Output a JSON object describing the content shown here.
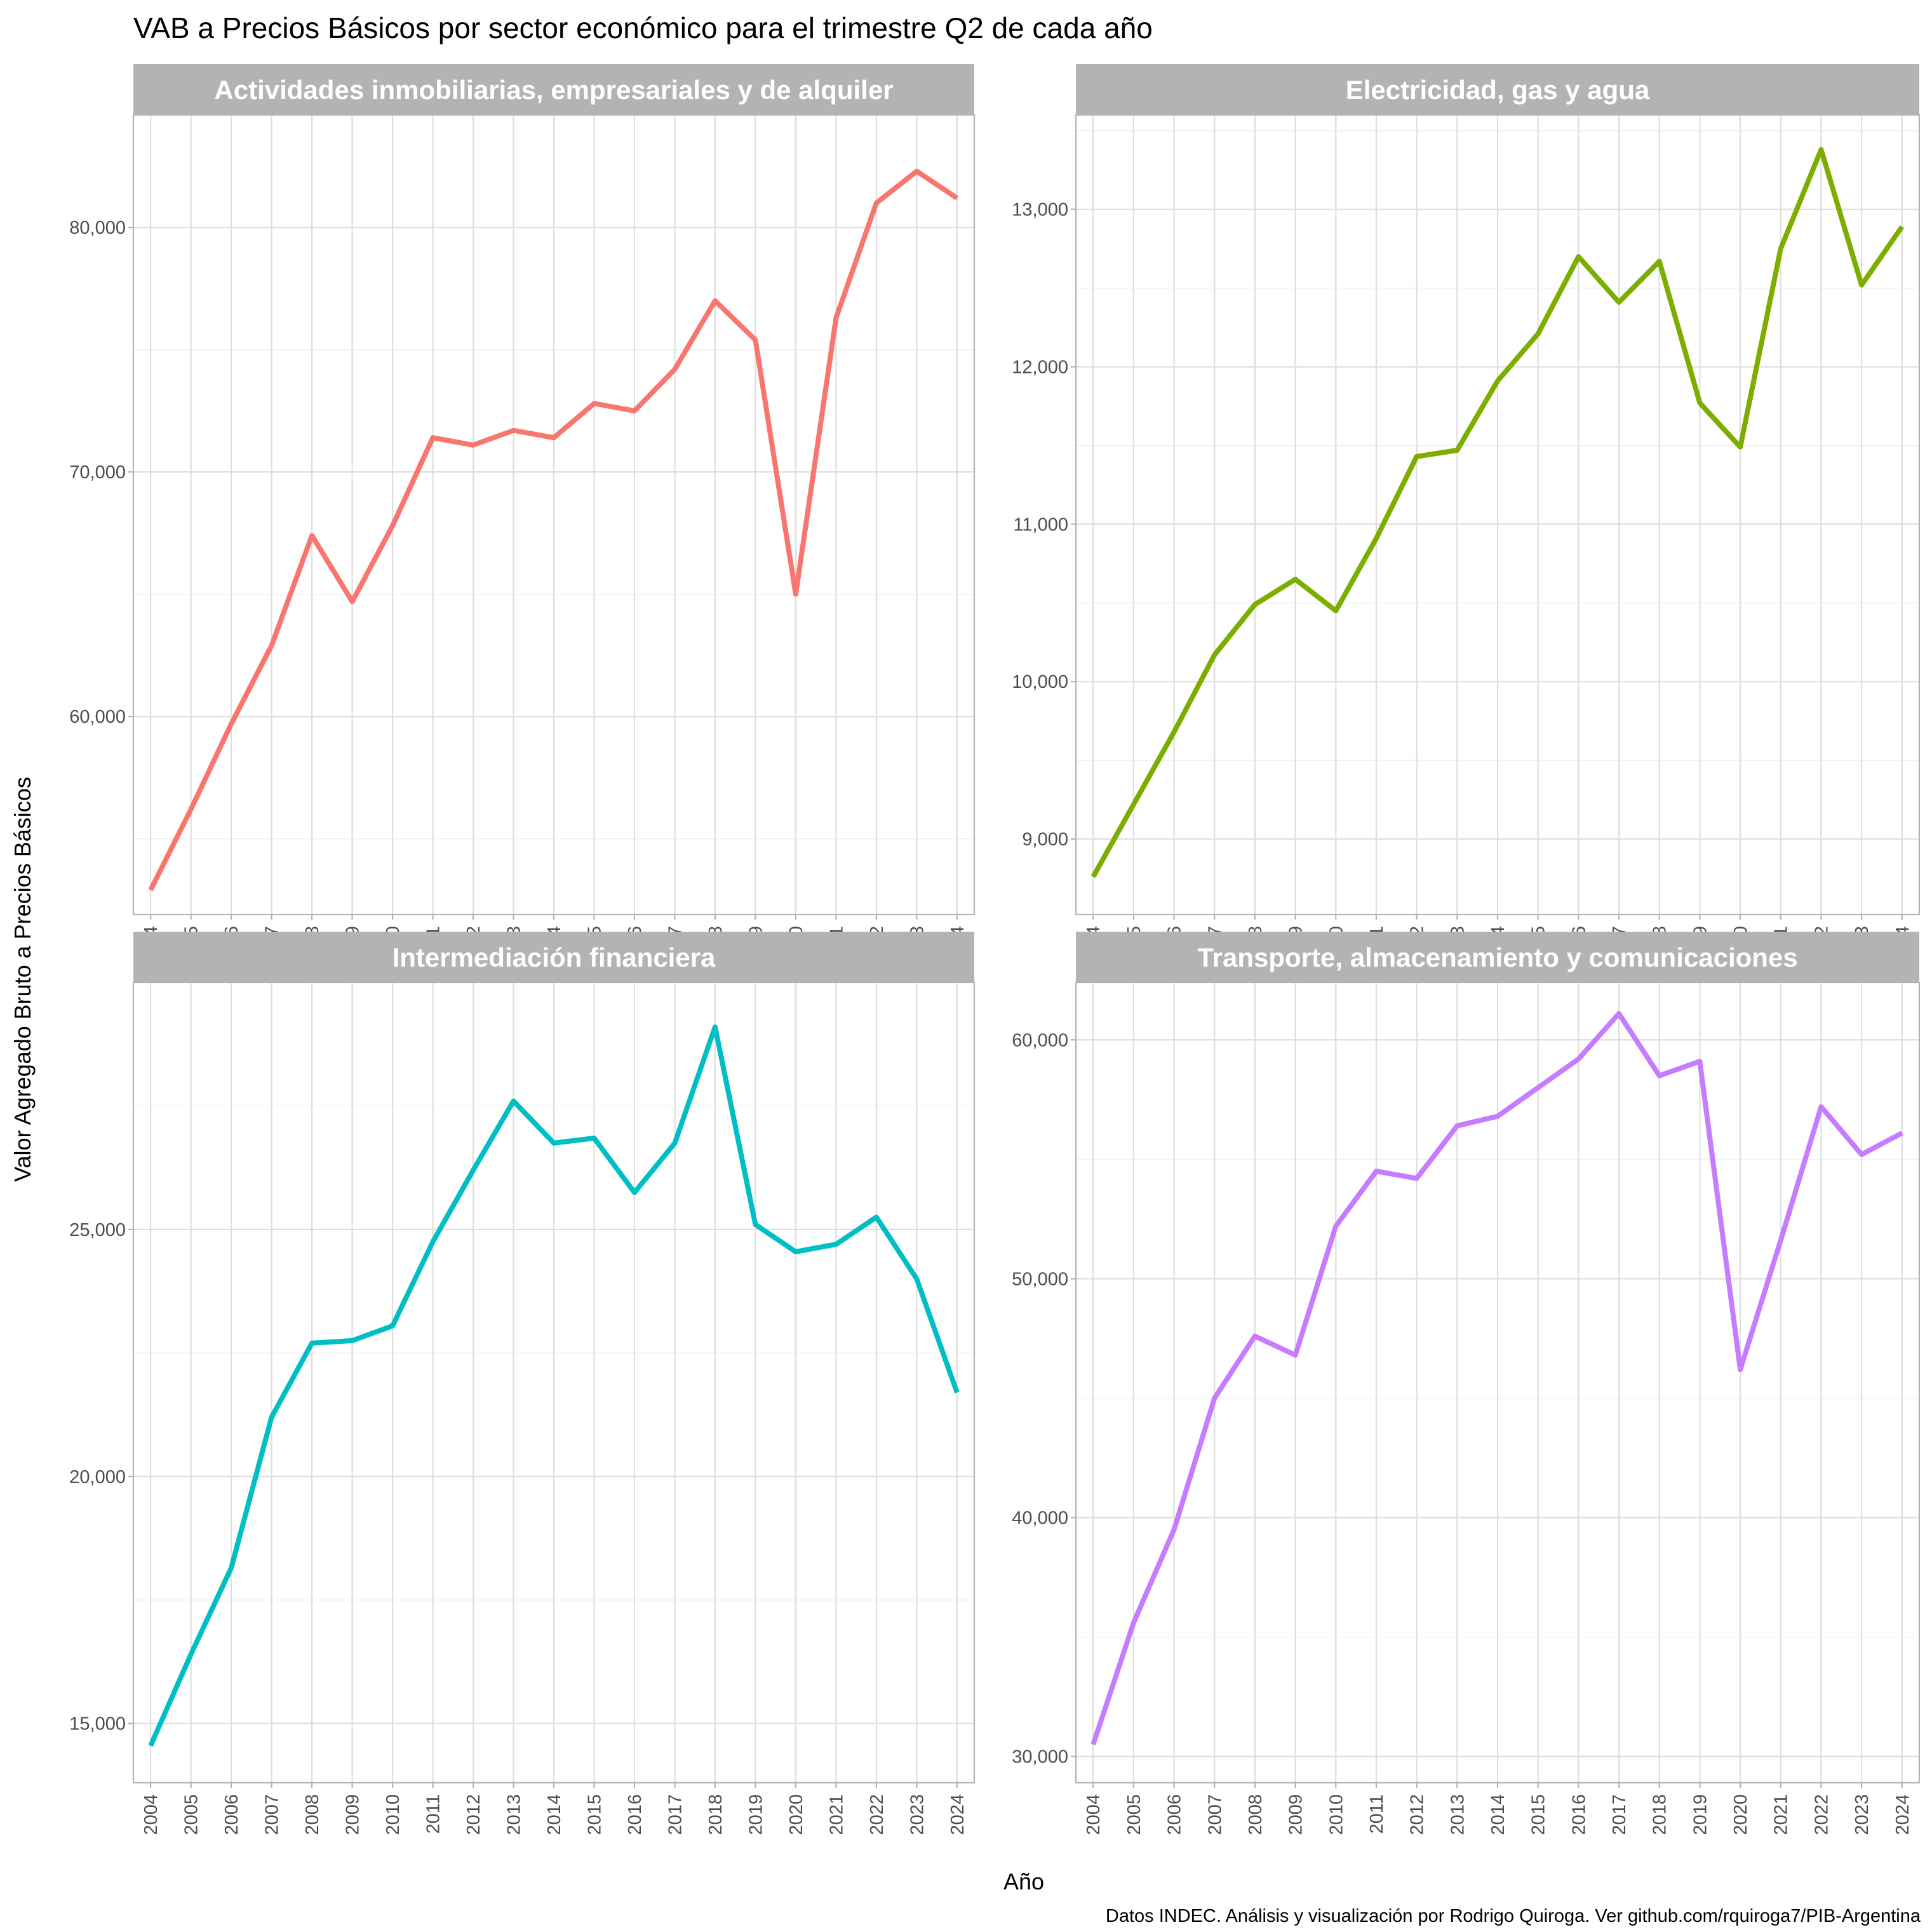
{
  "chart_data": {
    "type": "line",
    "title": "VAB a Precios Básicos por sector económico para el trimestre Q2 de cada año",
    "xlabel": "Año",
    "ylabel": "Valor Agregado Bruto a Precios Básicos",
    "caption": "Datos INDEC. Análisis y visualización por Rodrigo Quiroga. Ver github.com/rquiroga7/PIB-Argentina",
    "x": [
      2004,
      2005,
      2006,
      2007,
      2008,
      2009,
      2010,
      2011,
      2012,
      2013,
      2014,
      2015,
      2016,
      2017,
      2018,
      2019,
      2020,
      2021,
      2022,
      2023,
      2024
    ],
    "grid": true,
    "legend": "none",
    "facets": [
      {
        "name": "Actividades inmobiliarias, empresariales y de alquiler",
        "color": "#F8766D",
        "ylim": [
          51900,
          84600
        ],
        "yticks": [
          60000,
          70000,
          80000
        ],
        "ytick_labels": [
          "60,000",
          "70,000",
          "80,000"
        ],
        "values": [
          52900,
          56200,
          59700,
          62900,
          67400,
          64700,
          67800,
          71400,
          71100,
          71700,
          71400,
          72800,
          72500,
          74200,
          77000,
          75400,
          65000,
          76300,
          81000,
          82300,
          81200
        ]
      },
      {
        "name": "Electricidad, gas y agua",
        "color": "#7CAE00",
        "ylim": [
          8520,
          13600
        ],
        "yticks": [
          9000,
          10000,
          11000,
          12000,
          13000
        ],
        "ytick_labels": [
          "9,000",
          "10,000",
          "11,000",
          "12,000",
          "13,000"
        ],
        "values": [
          8760,
          9220,
          9680,
          10170,
          10490,
          10650,
          10450,
          10910,
          11430,
          11470,
          11910,
          12210,
          12700,
          12410,
          12670,
          11770,
          11490,
          12750,
          13380,
          12520,
          12890
        ]
      },
      {
        "name": "Intermediación financiera",
        "color": "#00BFC4",
        "ylim": [
          13800,
          30000
        ],
        "yticks": [
          15000,
          20000,
          25000
        ],
        "ytick_labels": [
          "15,000",
          "20,000",
          "25,000"
        ],
        "values": [
          14550,
          16400,
          18150,
          21200,
          22700,
          22750,
          23050,
          24750,
          26200,
          27600,
          26750,
          26850,
          25750,
          26750,
          29100,
          25100,
          24550,
          24700,
          25250,
          24000,
          21700
        ]
      },
      {
        "name": "Transporte, almacenamiento y comunicaciones",
        "color": "#C77CFF",
        "ylim": [
          28900,
          62400
        ],
        "yticks": [
          30000,
          40000,
          50000,
          60000
        ],
        "ytick_labels": [
          "30,000",
          "40,000",
          "50,000",
          "60,000"
        ],
        "values": [
          30500,
          35600,
          39500,
          45000,
          47600,
          46800,
          52200,
          54500,
          54200,
          56400,
          56800,
          58000,
          59200,
          61100,
          58500,
          59100,
          46200,
          51600,
          57200,
          55200,
          56100
        ]
      }
    ]
  }
}
